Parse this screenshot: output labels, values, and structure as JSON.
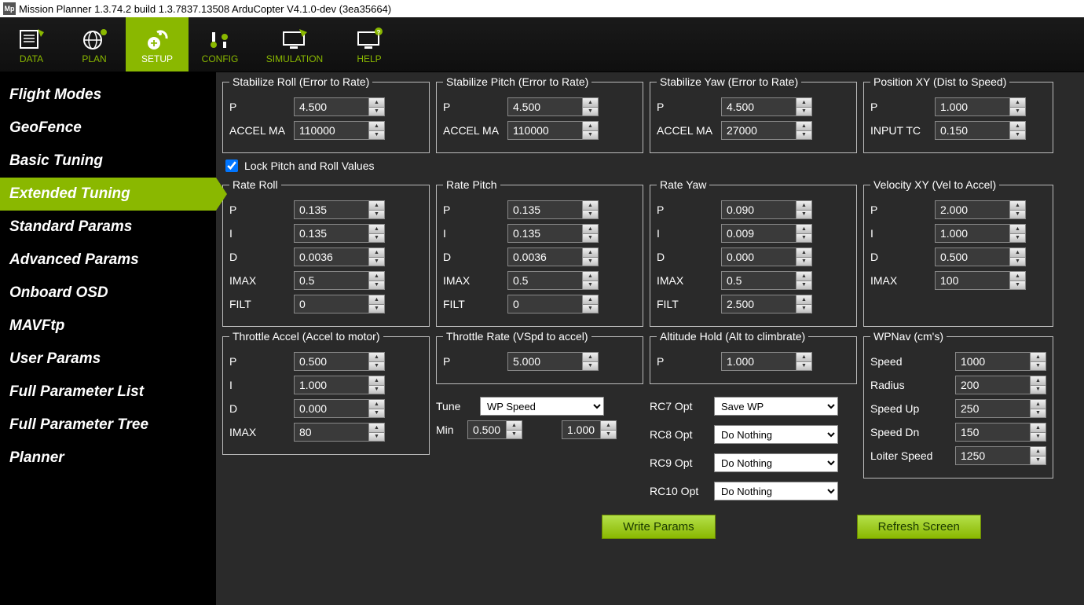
{
  "window": {
    "title": "Mission Planner 1.3.74.2 build 1.3.7837.13508 ArduCopter V4.1.0-dev (3ea35664)",
    "icon": "Mp"
  },
  "toolbar": {
    "items": [
      {
        "label": "DATA"
      },
      {
        "label": "PLAN"
      },
      {
        "label": "SETUP"
      },
      {
        "label": "CONFIG"
      },
      {
        "label": "SIMULATION"
      },
      {
        "label": "HELP"
      }
    ],
    "activeIndex": 2
  },
  "sidebar": {
    "items": [
      "Flight Modes",
      "GeoFence",
      "Basic Tuning",
      "Extended Tuning",
      "Standard Params",
      "Advanced Params",
      "Onboard OSD",
      "MAVFtp",
      "User Params",
      "Full Parameter List",
      "Full Parameter Tree",
      "Planner"
    ],
    "activeIndex": 3
  },
  "groups": {
    "stabRoll": {
      "title": "Stabilize Roll (Error to Rate)",
      "p_lbl": "P",
      "p": "4.500",
      "accel_lbl": "ACCEL MA",
      "accel": "110000"
    },
    "stabPitch": {
      "title": "Stabilize Pitch (Error to Rate)",
      "p_lbl": "P",
      "p": "4.500",
      "accel_lbl": "ACCEL MA",
      "accel": "110000"
    },
    "stabYaw": {
      "title": "Stabilize Yaw (Error to Rate)",
      "p_lbl": "P",
      "p": "4.500",
      "accel_lbl": "ACCEL MA",
      "accel": "27000"
    },
    "posXY": {
      "title": "Position XY (Dist to Speed)",
      "p_lbl": "P",
      "p": "1.000",
      "tc_lbl": "INPUT TC",
      "tc": "0.150"
    },
    "lock": {
      "label": "Lock Pitch and Roll Values",
      "checked": true
    },
    "rateRoll": {
      "title": "Rate Roll",
      "p_lbl": "P",
      "p": "0.135",
      "i_lbl": "I",
      "i": "0.135",
      "d_lbl": "D",
      "d": "0.0036",
      "imax_lbl": "IMAX",
      "imax": "0.5",
      "filt_lbl": "FILT",
      "filt": "0"
    },
    "ratePitch": {
      "title": "Rate Pitch",
      "p_lbl": "P",
      "p": "0.135",
      "i_lbl": "I",
      "i": "0.135",
      "d_lbl": "D",
      "d": "0.0036",
      "imax_lbl": "IMAX",
      "imax": "0.5",
      "filt_lbl": "FILT",
      "filt": "0"
    },
    "rateYaw": {
      "title": "Rate Yaw",
      "p_lbl": "P",
      "p": "0.090",
      "i_lbl": "I",
      "i": "0.009",
      "d_lbl": "D",
      "d": "0.000",
      "imax_lbl": "IMAX",
      "imax": "0.5",
      "filt_lbl": "FILT",
      "filt": "2.500"
    },
    "velXY": {
      "title": "Velocity XY (Vel to Accel)",
      "p_lbl": "P",
      "p": "2.000",
      "i_lbl": "I",
      "i": "1.000",
      "d_lbl": "D",
      "d": "0.500",
      "imax_lbl": "IMAX",
      "imax": "100"
    },
    "thrAccel": {
      "title": "Throttle Accel (Accel to motor)",
      "p_lbl": "P",
      "p": "0.500",
      "i_lbl": "I",
      "i": "1.000",
      "d_lbl": "D",
      "d": "0.000",
      "imax_lbl": "IMAX",
      "imax": "80"
    },
    "thrRate": {
      "title": "Throttle Rate (VSpd to accel)",
      "p_lbl": "P",
      "p": "5.000"
    },
    "altHold": {
      "title": "Altitude Hold (Alt to climbrate)",
      "p_lbl": "P",
      "p": "1.000"
    },
    "tune": {
      "lbl": "Tune",
      "value": "WP Speed",
      "min_lbl": "Min",
      "min": "0.500",
      "max": "1.000"
    },
    "rcOpts": {
      "rc7_lbl": "RC7 Opt",
      "rc7": "Save WP",
      "rc8_lbl": "RC8 Opt",
      "rc8": "Do Nothing",
      "rc9_lbl": "RC9 Opt",
      "rc9": "Do Nothing",
      "rc10_lbl": "RC10 Opt",
      "rc10": "Do Nothing"
    },
    "wpnav": {
      "title": "WPNav (cm's)",
      "speed_lbl": "Speed",
      "speed": "1000",
      "radius_lbl": "Radius",
      "radius": "200",
      "up_lbl": "Speed Up",
      "up": "250",
      "dn_lbl": "Speed Dn",
      "dn": "150",
      "loiter_lbl": "Loiter Speed",
      "loiter": "1250"
    }
  },
  "buttons": {
    "write": "Write Params",
    "refresh": "Refresh Screen"
  },
  "colors": {
    "accent": "#8ab800",
    "bg": "#2a2a2a",
    "sidebar": "#000000",
    "input_bg": "#3a3a3a"
  }
}
